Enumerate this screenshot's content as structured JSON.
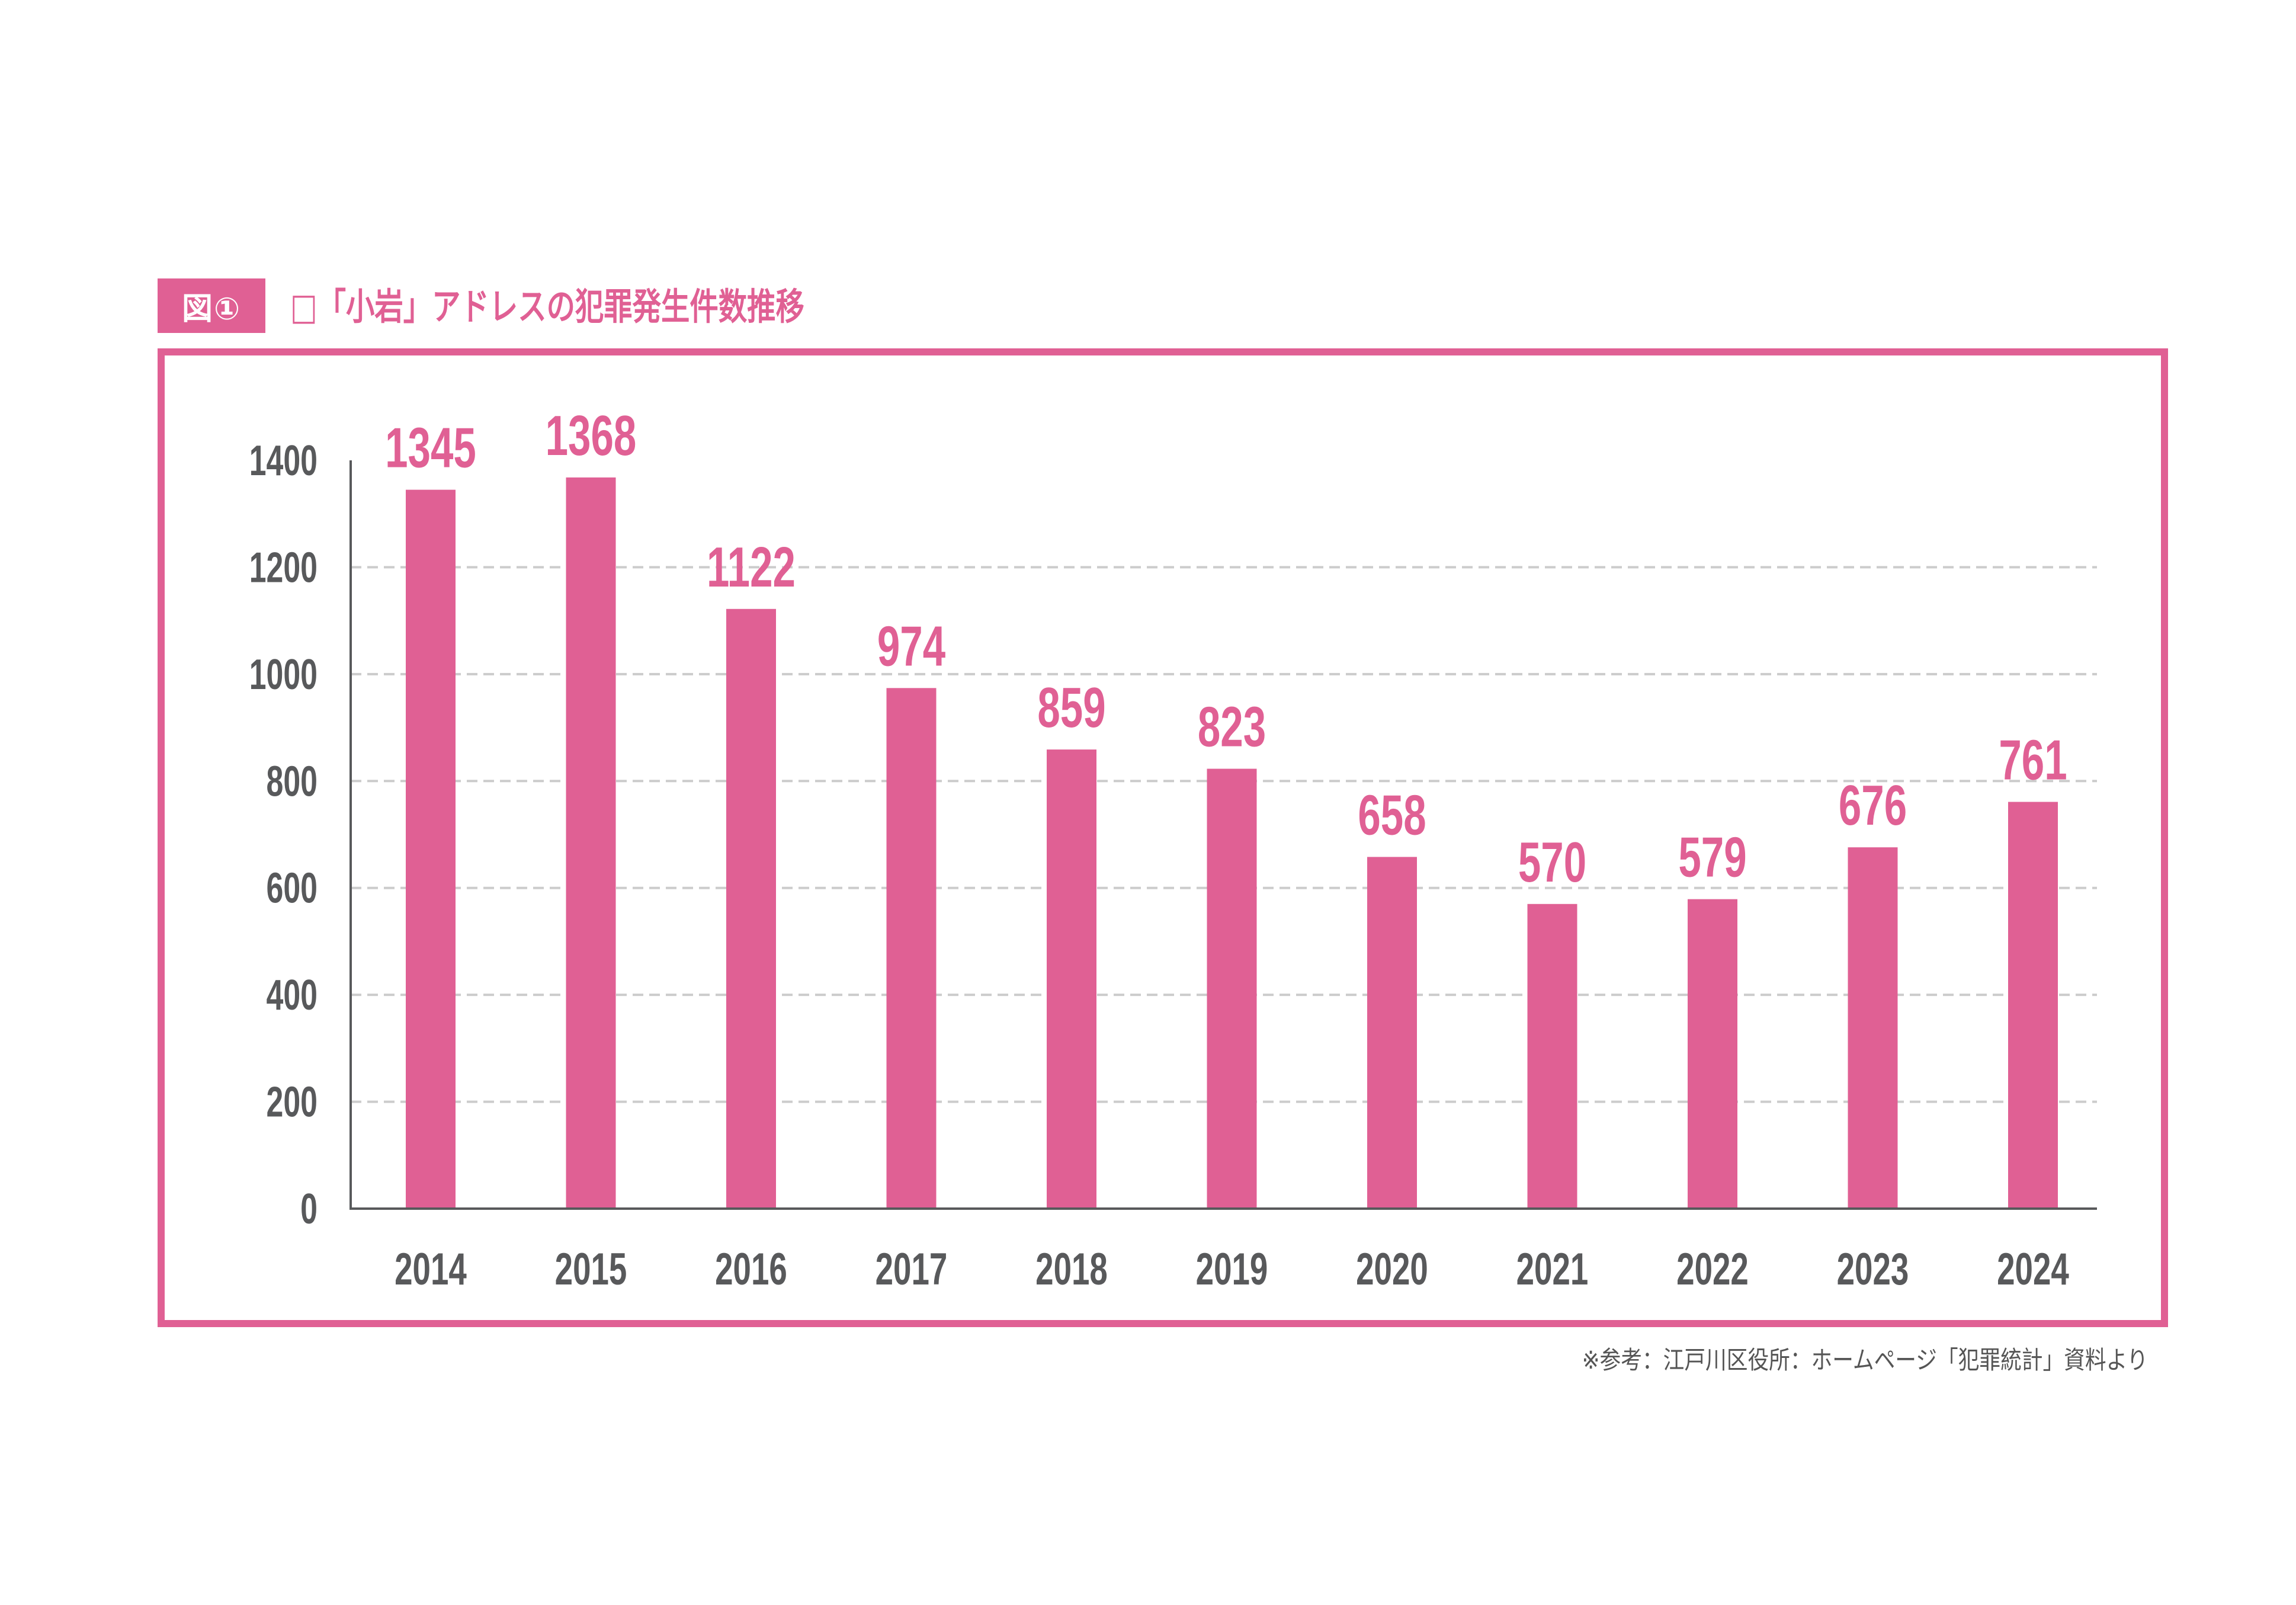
{
  "figure": {
    "badge": "図①",
    "title": "□「小岩」アドレスの犯罪発生件数推移",
    "source_note": "※参考：江戸川区役所：ホームページ「犯罪統計」資料より"
  },
  "colors": {
    "accent": "#e06094",
    "axis_text": "#58595b",
    "grid": "#cccccc"
  },
  "chart_data": {
    "type": "bar",
    "title": "「小岩」アドレスの犯罪発生件数推移",
    "xlabel": "",
    "ylabel": "",
    "categories": [
      "2014",
      "2015",
      "2016",
      "2017",
      "2018",
      "2019",
      "2020",
      "2021",
      "2022",
      "2023",
      "2024"
    ],
    "values": [
      1345,
      1368,
      1122,
      974,
      859,
      823,
      658,
      570,
      579,
      676,
      761
    ],
    "ylim": [
      0,
      1400
    ],
    "yticks": [
      0,
      200,
      400,
      600,
      800,
      1000,
      1200,
      1400
    ],
    "grid": true,
    "grid_style": "dashed",
    "data_labels": true,
    "legend": "none"
  }
}
